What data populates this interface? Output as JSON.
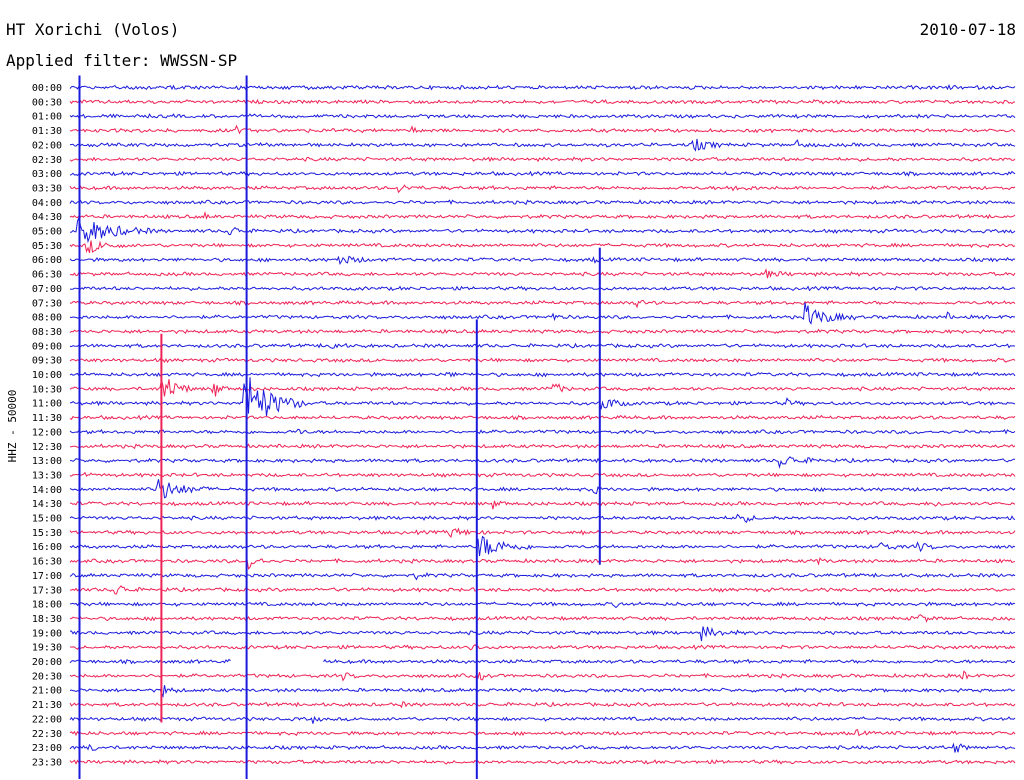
{
  "header": {
    "station": "HT Xorichi (Volos)",
    "date": "2010-07-18",
    "filter_label": "Applied filter: WWSSN-SP"
  },
  "side_label": "HHZ - 50000",
  "colors": {
    "trace_a": "#1a1adc",
    "trace_b": "#ee2255",
    "text": "#000000",
    "background": "#ffffff"
  },
  "chart_data": {
    "type": "line",
    "title": "HT Xorichi (Volos)",
    "subtitle": "Applied filter: WWSSN-SP",
    "ylabel": "HHZ - 50000",
    "xlabel": "",
    "date": "2010-07-18",
    "grid": false,
    "row_labels": [
      "00:00",
      "00:30",
      "01:00",
      "01:30",
      "02:00",
      "02:30",
      "03:00",
      "03:30",
      "04:00",
      "04:30",
      "05:00",
      "05:30",
      "06:00",
      "06:30",
      "07:00",
      "07:30",
      "08:00",
      "08:30",
      "09:00",
      "09:30",
      "10:00",
      "10:30",
      "11:00",
      "11:30",
      "12:00",
      "12:30",
      "13:00",
      "13:30",
      "14:00",
      "14:30",
      "15:00",
      "15:30",
      "16:00",
      "16:30",
      "17:00",
      "17:30",
      "18:00",
      "18:30",
      "19:00",
      "19:30",
      "20:00",
      "20:30",
      "21:00",
      "21:30",
      "22:00",
      "22:30",
      "23:00",
      "23:30"
    ],
    "row_color_cycle": [
      "#1a1adc",
      "#ee2255"
    ],
    "x_range_minutes": [
      0,
      30
    ],
    "data_gap": {
      "row": "20:00",
      "from_minute": 5.1,
      "to_minute": 8.0
    },
    "events": [
      {
        "row": "00:00",
        "minute": 17.8,
        "amp": 0.45,
        "dur": 0.5
      },
      {
        "row": "00:00",
        "minute": 27.8,
        "amp": 0.3,
        "dur": 0.4
      },
      {
        "row": "01:30",
        "minute": 5.2,
        "amp": 0.5,
        "dur": 0.5
      },
      {
        "row": "01:30",
        "minute": 10.8,
        "amp": 0.4,
        "dur": 0.4
      },
      {
        "row": "02:00",
        "minute": 19.7,
        "amp": 0.7,
        "dur": 1.2
      },
      {
        "row": "02:00",
        "minute": 23.0,
        "amp": 0.35,
        "dur": 1.0
      },
      {
        "row": "03:30",
        "minute": 10.4,
        "amp": 0.4,
        "dur": 0.8
      },
      {
        "row": "03:30",
        "minute": 21.0,
        "amp": 0.35,
        "dur": 1.0
      },
      {
        "row": "04:30",
        "minute": 4.2,
        "amp": 0.4,
        "dur": 0.4
      },
      {
        "row": "04:30",
        "minute": 20.2,
        "amp": 0.3,
        "dur": 0.3
      },
      {
        "row": "05:00",
        "minute": 0.2,
        "amp": 1.6,
        "dur": 2.5
      },
      {
        "row": "05:00",
        "minute": 5.0,
        "amp": 0.6,
        "dur": 0.8
      },
      {
        "row": "05:30",
        "minute": 0.5,
        "amp": 0.8,
        "dur": 1.4
      },
      {
        "row": "06:00",
        "minute": 8.5,
        "amp": 0.5,
        "dur": 1.2
      },
      {
        "row": "06:00",
        "minute": 16.6,
        "amp": 0.35,
        "dur": 0.3
      },
      {
        "row": "06:30",
        "minute": 22.0,
        "amp": 0.35,
        "dur": 1.2
      },
      {
        "row": "07:30",
        "minute": 17.9,
        "amp": 0.55,
        "dur": 0.5
      },
      {
        "row": "08:00",
        "minute": 15.3,
        "amp": 0.45,
        "dur": 0.4
      },
      {
        "row": "08:00",
        "minute": 23.3,
        "amp": 1.3,
        "dur": 1.6
      },
      {
        "row": "08:00",
        "minute": 27.8,
        "amp": 0.4,
        "dur": 0.3
      },
      {
        "row": "09:00",
        "minute": 8.2,
        "amp": 0.6,
        "dur": 0.6
      },
      {
        "row": "10:00",
        "minute": 11.9,
        "amp": 0.45,
        "dur": 0.4
      },
      {
        "row": "10:30",
        "minute": 2.9,
        "amp": 2.0,
        "dur": 1.0
      },
      {
        "row": "10:30",
        "minute": 4.5,
        "amp": 1.3,
        "dur": 0.5
      },
      {
        "row": "10:30",
        "minute": 15.3,
        "amp": 0.8,
        "dur": 0.6
      },
      {
        "row": "11:00",
        "minute": 5.5,
        "amp": 3.5,
        "dur": 2.0
      },
      {
        "row": "11:00",
        "minute": 16.8,
        "amp": 1.0,
        "dur": 1.0
      },
      {
        "row": "11:00",
        "minute": 22.7,
        "amp": 0.5,
        "dur": 0.4
      },
      {
        "row": "12:00",
        "minute": 7.2,
        "amp": 0.4,
        "dur": 0.4
      },
      {
        "row": "12:00",
        "minute": 26.6,
        "amp": 0.3,
        "dur": 0.3
      },
      {
        "row": "13:00",
        "minute": 22.5,
        "amp": 0.6,
        "dur": 1.5
      },
      {
        "row": "13:30",
        "minute": 0.3,
        "amp": 0.4,
        "dur": 0.3
      },
      {
        "row": "14:00",
        "minute": 2.7,
        "amp": 1.3,
        "dur": 1.8
      },
      {
        "row": "14:00",
        "minute": 16.6,
        "amp": 0.45,
        "dur": 0.4
      },
      {
        "row": "14:30",
        "minute": 13.4,
        "amp": 0.5,
        "dur": 0.5
      },
      {
        "row": "14:30",
        "minute": 27.4,
        "amp": 0.4,
        "dur": 0.5
      },
      {
        "row": "15:00",
        "minute": 21.1,
        "amp": 0.8,
        "dur": 0.8
      },
      {
        "row": "15:30",
        "minute": 12.0,
        "amp": 0.5,
        "dur": 1.4
      },
      {
        "row": "15:30",
        "minute": 16.2,
        "amp": 0.3,
        "dur": 0.3
      },
      {
        "row": "16:00",
        "minute": 12.9,
        "amp": 1.4,
        "dur": 1.8
      },
      {
        "row": "16:00",
        "minute": 25.6,
        "amp": 0.6,
        "dur": 0.8
      },
      {
        "row": "16:00",
        "minute": 26.8,
        "amp": 0.6,
        "dur": 0.8
      },
      {
        "row": "16:30",
        "minute": 5.6,
        "amp": 1.0,
        "dur": 0.8
      },
      {
        "row": "16:30",
        "minute": 23.6,
        "amp": 0.4,
        "dur": 0.6
      },
      {
        "row": "17:00",
        "minute": 10.9,
        "amp": 0.4,
        "dur": 0.5
      },
      {
        "row": "17:30",
        "minute": 1.4,
        "amp": 0.7,
        "dur": 0.8
      },
      {
        "row": "18:00",
        "minute": 17.3,
        "amp": 0.4,
        "dur": 0.4
      },
      {
        "row": "18:00",
        "minute": 26.8,
        "amp": 0.3,
        "dur": 0.3
      },
      {
        "row": "18:30",
        "minute": 26.9,
        "amp": 0.5,
        "dur": 0.6
      },
      {
        "row": "19:00",
        "minute": 20.0,
        "amp": 0.7,
        "dur": 1.2
      },
      {
        "row": "19:30",
        "minute": 12.7,
        "amp": 0.6,
        "dur": 0.4
      },
      {
        "row": "20:30",
        "minute": 8.6,
        "amp": 0.45,
        "dur": 0.6
      },
      {
        "row": "20:30",
        "minute": 12.9,
        "amp": 0.6,
        "dur": 0.5
      },
      {
        "row": "20:30",
        "minute": 28.3,
        "amp": 0.5,
        "dur": 0.4
      },
      {
        "row": "21:00",
        "minute": 2.9,
        "amp": 0.6,
        "dur": 0.7
      },
      {
        "row": "21:30",
        "minute": 10.4,
        "amp": 0.4,
        "dur": 0.4
      },
      {
        "row": "22:00",
        "minute": 7.7,
        "amp": 0.35,
        "dur": 0.3
      },
      {
        "row": "22:30",
        "minute": 0.1,
        "amp": 0.4,
        "dur": 0.4
      },
      {
        "row": "22:30",
        "minute": 24.9,
        "amp": 0.35,
        "dur": 0.4
      },
      {
        "row": "23:00",
        "minute": 0.6,
        "amp": 0.5,
        "dur": 0.5
      },
      {
        "row": "23:00",
        "minute": 13.0,
        "amp": 0.35,
        "dur": 0.3
      },
      {
        "row": "23:00",
        "minute": 28.0,
        "amp": 0.7,
        "dur": 0.6
      }
    ],
    "spikes": [
      {
        "minute": 0.3,
        "from_row": "00:00",
        "to_row": "23:30",
        "color": "#1a1adc"
      },
      {
        "minute": 5.6,
        "from_row": "00:00",
        "to_row": "23:30",
        "color": "#1a1adc"
      },
      {
        "minute": 12.9,
        "from_row": "08:30",
        "to_row": "23:30",
        "color": "#1a1adc"
      },
      {
        "minute": 2.9,
        "from_row": "09:00",
        "to_row": "21:30",
        "color": "#ee2255"
      },
      {
        "minute": 16.8,
        "from_row": "06:00",
        "to_row": "16:00",
        "color": "#1a1adc"
      }
    ]
  }
}
